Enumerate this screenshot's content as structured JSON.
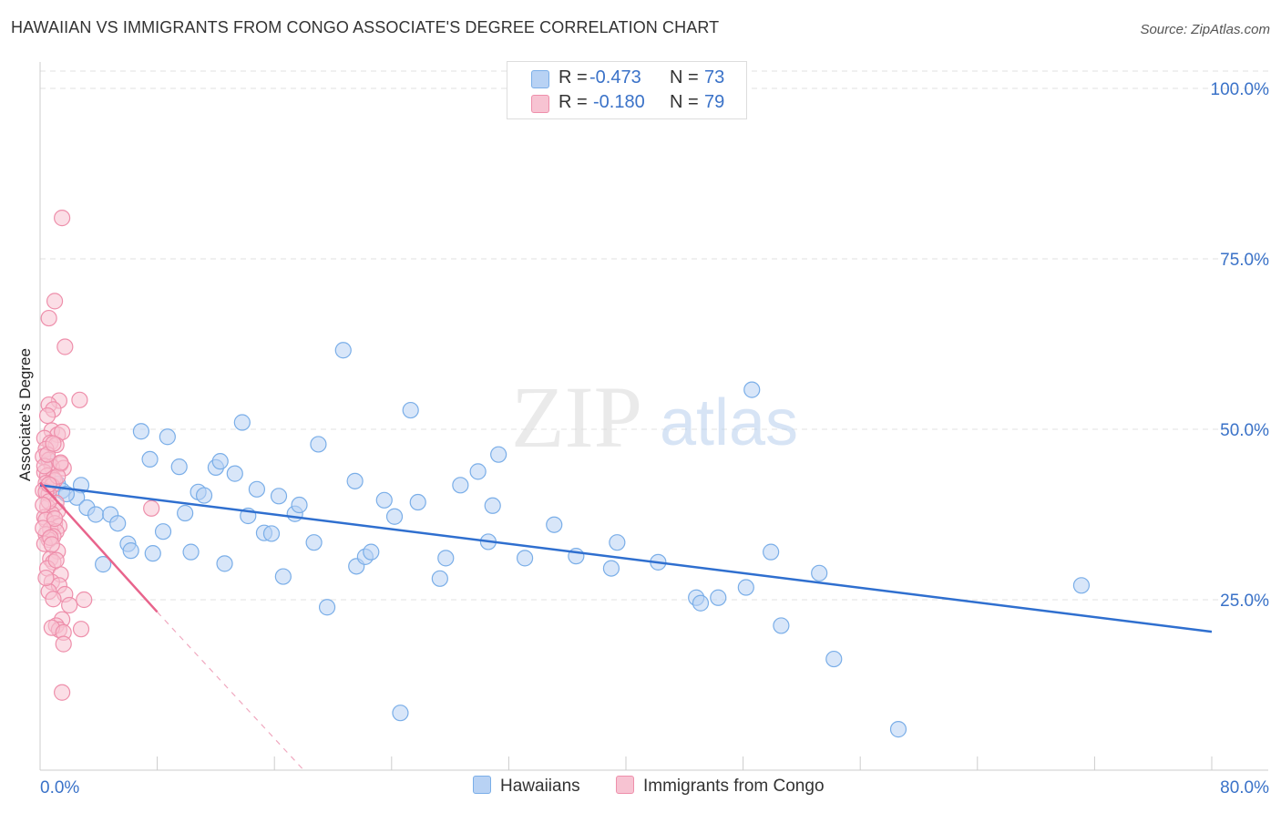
{
  "title": "HAWAIIAN VS IMMIGRANTS FROM CONGO ASSOCIATE'S DEGREE CORRELATION CHART",
  "source": "Source: ZipAtlas.com",
  "watermark": {
    "zip": "ZIP",
    "atlas": "atlas"
  },
  "legend": {
    "series": [
      {
        "name": "Hawaiians",
        "r_label": "R =",
        "r_value": "-0.473",
        "n_label": "N =",
        "n_value": "73",
        "color": "#7aaee8",
        "fill": "#b8d2f4"
      },
      {
        "name": "Immigrants from Congo",
        "r_label": "R =",
        "r_value": "-0.180",
        "n_label": "N =",
        "n_value": "79",
        "color": "#ee8fab",
        "fill": "#f7c3d2"
      }
    ]
  },
  "colors": {
    "blue_line": "#2f6fcf",
    "pink_line": "#e8648c",
    "tick_label": "#3a72c8",
    "grid": "#e2e2e2"
  },
  "chart_data": {
    "type": "scatter",
    "title": "HAWAIIAN VS IMMIGRANTS FROM CONGO ASSOCIATE'S DEGREE CORRELATION CHART",
    "xlabel": "",
    "ylabel": "Associate's Degree",
    "xlim": [
      0,
      80
    ],
    "ylim": [
      0,
      102
    ],
    "x_tick_labels": [
      "0.0%",
      "80.0%"
    ],
    "y_ticks": [
      25,
      50,
      75,
      100
    ],
    "y_tick_labels": [
      "25.0%",
      "50.0%",
      "75.0%",
      "100.0%"
    ],
    "grid": true,
    "series": [
      {
        "name": "Hawaiians",
        "trend": {
          "x": [
            0,
            80
          ],
          "y": [
            41.8,
            20.3
          ],
          "style": "solid"
        },
        "points": [
          [
            0.6,
            45.5
          ],
          [
            1.2,
            42
          ],
          [
            1.5,
            41
          ],
          [
            2.8,
            41.8
          ],
          [
            2.5,
            40
          ],
          [
            1.8,
            40.5
          ],
          [
            3.2,
            38.5
          ],
          [
            3.8,
            37.5
          ],
          [
            4.8,
            37.5
          ],
          [
            5.3,
            36.2
          ],
          [
            4.3,
            30.2
          ],
          [
            6.0,
            33.2
          ],
          [
            6.2,
            32.2
          ],
          [
            7.7,
            31.8
          ],
          [
            6.9,
            49.7
          ],
          [
            7.5,
            45.6
          ],
          [
            8.4,
            35.0
          ],
          [
            8.7,
            48.9
          ],
          [
            9.5,
            44.5
          ],
          [
            9.9,
            37.7
          ],
          [
            10.3,
            32.0
          ],
          [
            10.8,
            40.8
          ],
          [
            11.2,
            40.3
          ],
          [
            12.0,
            44.4
          ],
          [
            12.3,
            45.3
          ],
          [
            12.6,
            30.3
          ],
          [
            13.3,
            43.5
          ],
          [
            13.8,
            51.0
          ],
          [
            14.2,
            37.3
          ],
          [
            14.8,
            41.2
          ],
          [
            15.3,
            34.8
          ],
          [
            15.8,
            34.7
          ],
          [
            16.3,
            40.2
          ],
          [
            16.6,
            28.4
          ],
          [
            17.4,
            37.6
          ],
          [
            17.7,
            38.9
          ],
          [
            18.7,
            33.4
          ],
          [
            19.0,
            47.8
          ],
          [
            19.6,
            23.9
          ],
          [
            20.7,
            61.6
          ],
          [
            21.5,
            42.4
          ],
          [
            21.6,
            29.9
          ],
          [
            22.2,
            31.3
          ],
          [
            22.6,
            32.0
          ],
          [
            23.5,
            39.6
          ],
          [
            24.2,
            37.2
          ],
          [
            24.6,
            8.4
          ],
          [
            25.3,
            52.8
          ],
          [
            25.8,
            39.3
          ],
          [
            27.3,
            28.1
          ],
          [
            27.7,
            31.1
          ],
          [
            28.7,
            41.8
          ],
          [
            29.9,
            43.8
          ],
          [
            30.6,
            33.5
          ],
          [
            30.9,
            38.8
          ],
          [
            31.3,
            46.3
          ],
          [
            33.1,
            31.1
          ],
          [
            35.1,
            36.0
          ],
          [
            36.6,
            31.4
          ],
          [
            39.0,
            29.6
          ],
          [
            39.4,
            33.4
          ],
          [
            42.2,
            30.5
          ],
          [
            44.8,
            25.3
          ],
          [
            45.1,
            24.5
          ],
          [
            46.3,
            25.3
          ],
          [
            48.2,
            26.8
          ],
          [
            48.6,
            55.8
          ],
          [
            49.9,
            32.0
          ],
          [
            50.6,
            21.2
          ],
          [
            53.2,
            28.9
          ],
          [
            54.2,
            16.3
          ],
          [
            58.6,
            6.0
          ],
          [
            71.1,
            27.1
          ]
        ]
      },
      {
        "name": "Immigrants from Congo",
        "trend": {
          "x": [
            0,
            8.0
          ],
          "y_solid_end": 23.2,
          "y": [
            42.2,
            23.2
          ],
          "dashed_to": {
            "x": 18.0,
            "y": 0
          }
        },
        "points": [
          [
            1.5,
            81.0
          ],
          [
            1.0,
            68.8
          ],
          [
            0.6,
            66.3
          ],
          [
            1.7,
            62.1
          ],
          [
            2.7,
            54.3
          ],
          [
            1.3,
            54.2
          ],
          [
            0.6,
            53.6
          ],
          [
            0.9,
            52.9
          ],
          [
            0.5,
            52.0
          ],
          [
            0.8,
            49.8
          ],
          [
            1.2,
            49.2
          ],
          [
            1.5,
            49.6
          ],
          [
            0.3,
            48.7
          ],
          [
            0.7,
            48.0
          ],
          [
            1.1,
            47.7
          ],
          [
            0.4,
            47.1
          ],
          [
            0.2,
            46.0
          ],
          [
            0.6,
            45.5
          ],
          [
            1.4,
            44.9
          ],
          [
            0.8,
            44.5
          ],
          [
            1.6,
            44.3
          ],
          [
            0.3,
            43.7
          ],
          [
            0.5,
            43.2
          ],
          [
            0.9,
            42.8
          ],
          [
            1.0,
            42.5
          ],
          [
            0.4,
            42.1
          ],
          [
            0.8,
            41.7
          ],
          [
            0.2,
            41.0
          ],
          [
            0.6,
            40.5
          ],
          [
            1.1,
            39.2
          ],
          [
            0.5,
            38.6
          ],
          [
            1.2,
            38.0
          ],
          [
            0.8,
            37.6
          ],
          [
            0.3,
            37.1
          ],
          [
            0.4,
            36.7
          ],
          [
            1.0,
            36.2
          ],
          [
            1.3,
            35.8
          ],
          [
            0.7,
            35.3
          ],
          [
            1.1,
            35.0
          ],
          [
            0.4,
            34.6
          ],
          [
            0.9,
            34.3
          ],
          [
            0.6,
            33.8
          ],
          [
            0.3,
            33.2
          ],
          [
            1.2,
            32.1
          ],
          [
            0.7,
            31.0
          ],
          [
            0.9,
            30.5
          ],
          [
            0.5,
            29.6
          ],
          [
            1.4,
            28.7
          ],
          [
            0.8,
            27.6
          ],
          [
            1.3,
            27.1
          ],
          [
            0.6,
            26.2
          ],
          [
            1.7,
            25.8
          ],
          [
            0.9,
            25.1
          ],
          [
            2.0,
            24.2
          ],
          [
            1.5,
            22.1
          ],
          [
            1.1,
            21.2
          ],
          [
            1.3,
            20.6
          ],
          [
            0.8,
            20.9
          ],
          [
            1.6,
            20.2
          ],
          [
            3.0,
            25.0
          ],
          [
            2.8,
            20.7
          ],
          [
            1.6,
            18.5
          ],
          [
            1.5,
            11.4
          ],
          [
            7.6,
            38.4
          ],
          [
            0.4,
            40.8
          ],
          [
            0.6,
            39.4
          ],
          [
            1.0,
            36.9
          ],
          [
            0.2,
            35.5
          ],
          [
            0.7,
            34.1
          ],
          [
            1.2,
            43.1
          ],
          [
            0.3,
            44.6
          ],
          [
            0.5,
            46.3
          ],
          [
            0.9,
            47.9
          ],
          [
            1.4,
            45.1
          ],
          [
            0.6,
            41.9
          ],
          [
            0.2,
            38.9
          ],
          [
            0.8,
            33.1
          ],
          [
            1.1,
            30.8
          ],
          [
            0.4,
            28.2
          ]
        ]
      }
    ]
  }
}
